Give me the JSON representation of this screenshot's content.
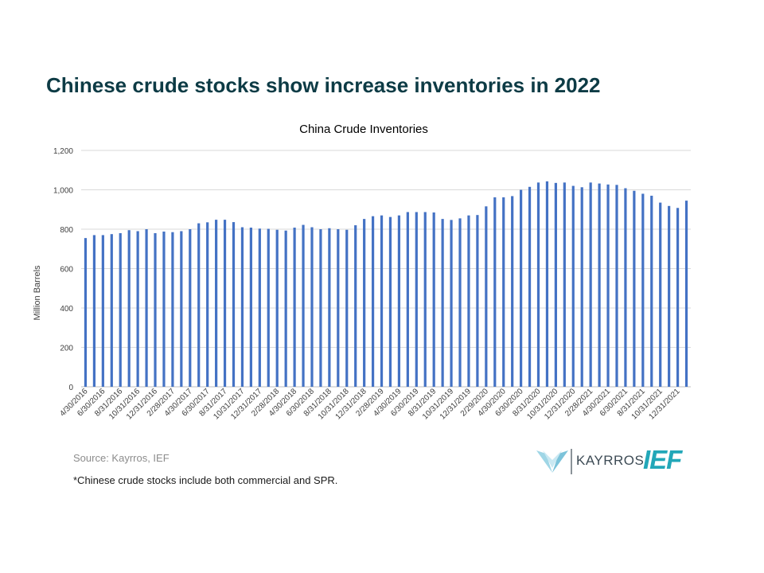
{
  "slide": {
    "title": "Chinese crude stocks show increase inventories in 2022",
    "source": "Source: Kayrros, IEF",
    "footnote": "*Chinese crude stocks include both commercial and SPR.",
    "logos": {
      "kayrros": "KAYRROS",
      "ief": "IEF"
    }
  },
  "colors": {
    "bar": "#4472c4",
    "title": "#0d3b45",
    "grid": "#d9d9d9",
    "ief": "#22a7b8"
  },
  "chart_data": {
    "type": "bar",
    "title": "China Crude Inventories",
    "xlabel": "",
    "ylabel": "Million Barrels",
    "ylim": [
      0,
      1200
    ],
    "yticks": [
      0,
      200,
      400,
      600,
      800,
      1000,
      1200
    ],
    "ytick_labels": [
      "0",
      "200",
      "400",
      "600",
      "800",
      "1,000",
      "1,200"
    ],
    "grid": true,
    "legend": "none",
    "categories": [
      "4/30/2016",
      "5/31/2016",
      "6/30/2016",
      "7/31/2016",
      "8/31/2016",
      "9/30/2016",
      "10/31/2016",
      "11/30/2016",
      "12/31/2016",
      "1/31/2017",
      "2/28/2017",
      "3/31/2017",
      "4/30/2017",
      "5/31/2017",
      "6/30/2017",
      "7/31/2017",
      "8/31/2017",
      "9/30/2017",
      "10/31/2017",
      "11/30/2017",
      "12/31/2017",
      "1/31/2018",
      "2/28/2018",
      "3/31/2018",
      "4/30/2018",
      "5/31/2018",
      "6/30/2018",
      "7/31/2018",
      "8/31/2018",
      "9/30/2018",
      "10/31/2018",
      "11/30/2018",
      "12/31/2018",
      "1/31/2019",
      "2/28/2019",
      "3/31/2019",
      "4/30/2019",
      "5/31/2019",
      "6/30/2019",
      "7/31/2019",
      "8/31/2019",
      "9/30/2019",
      "10/31/2019",
      "11/30/2019",
      "12/31/2019",
      "1/31/2020",
      "2/29/2020",
      "3/31/2020",
      "4/30/2020",
      "5/31/2020",
      "6/30/2020",
      "7/31/2020",
      "8/31/2020",
      "9/30/2020",
      "10/31/2020",
      "11/30/2020",
      "12/31/2020",
      "1/31/2021",
      "2/28/2021",
      "3/31/2021",
      "4/30/2021",
      "5/31/2021",
      "6/30/2021",
      "7/31/2021",
      "8/31/2021",
      "9/30/2021",
      "10/31/2021",
      "11/30/2021",
      "12/31/2021",
      "1/31/2022"
    ],
    "tick_labels": [
      "4/30/2016",
      "6/30/2016",
      "8/31/2016",
      "10/31/2016",
      "12/31/2016",
      "2/28/2017",
      "4/30/2017",
      "6/30/2017",
      "8/31/2017",
      "10/31/2017",
      "12/31/2017",
      "2/28/2018",
      "4/30/2018",
      "6/30/2018",
      "8/31/2018",
      "10/31/2018",
      "12/31/2018",
      "2/28/2019",
      "4/30/2019",
      "6/30/2019",
      "8/31/2019",
      "10/31/2019",
      "12/31/2019",
      "2/29/2020",
      "4/30/2020",
      "6/30/2020",
      "8/31/2020",
      "10/31/2020",
      "12/31/2020",
      "2/28/2021",
      "4/30/2021",
      "6/30/2021",
      "8/31/2021",
      "10/31/2021",
      "12/31/2021"
    ],
    "values": [
      755,
      770,
      770,
      775,
      780,
      795,
      790,
      800,
      780,
      788,
      785,
      790,
      800,
      830,
      835,
      848,
      848,
      836,
      810,
      808,
      803,
      802,
      797,
      793,
      808,
      822,
      810,
      800,
      805,
      800,
      797,
      820,
      852,
      866,
      870,
      862,
      870,
      887,
      887,
      887,
      885,
      852,
      847,
      855,
      870,
      872,
      916,
      962,
      962,
      968,
      1000,
      1015,
      1037,
      1043,
      1035,
      1037,
      1020,
      1013,
      1037,
      1032,
      1027,
      1025,
      1008,
      995,
      980,
      970,
      935,
      918,
      908,
      945
    ]
  }
}
